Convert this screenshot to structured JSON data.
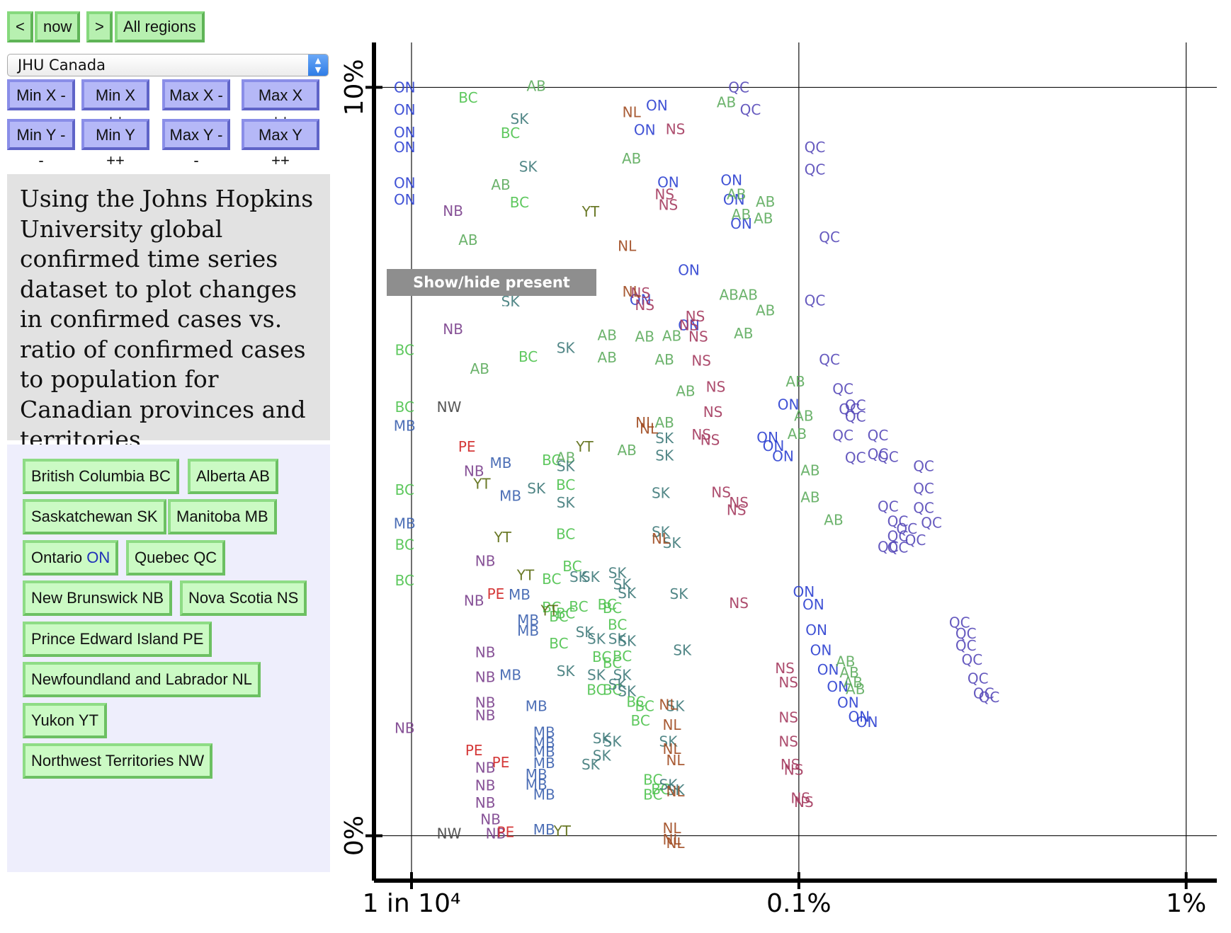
{
  "nav": {
    "prev": "<",
    "now": "now",
    "next": ">",
    "all_regions": "All regions"
  },
  "dataset_select": {
    "value": "JHU Canada",
    "arrow_up": "▲",
    "arrow_down": "▼"
  },
  "axis_buttons": {
    "min_x_down": "Min X --",
    "min_x_up": "Min X ++",
    "max_x_down": "Max X --",
    "max_x_up": "Max X ++",
    "min_y_down": "Min Y --",
    "min_y_up": "Min Y ++",
    "max_y_down": "Max Y --",
    "max_y_up": "Max Y ++"
  },
  "description": "Using the Johns Hopkins University global confirmed time series dataset to plot changes in confirmed cases vs. ratio of confirmed cases to population for Canadian provinces and territories.",
  "regions": [
    {
      "name": "British Columbia",
      "abbr": "BC"
    },
    {
      "name": "Alberta",
      "abbr": "AB"
    },
    {
      "name": "Saskatchewan",
      "abbr": "SK"
    },
    {
      "name": "Manitoba",
      "abbr": "MB"
    },
    {
      "name": "Ontario",
      "abbr": "ON"
    },
    {
      "name": "Quebec",
      "abbr": "QC"
    },
    {
      "name": "New Brunswick",
      "abbr": "NB"
    },
    {
      "name": "Nova Scotia",
      "abbr": "NS"
    },
    {
      "name": "Prince Edward Island",
      "abbr": "PE"
    },
    {
      "name": "Newfoundland and Labrador",
      "abbr": "NL"
    },
    {
      "name": "Yukon",
      "abbr": "YT"
    },
    {
      "name": "Northwest Territories",
      "abbr": "NW"
    }
  ],
  "tooltip": "Show/hide present values",
  "colors": {
    "BC": "#4cc24c",
    "AB": "#5cab5c",
    "SK": "#3f7a7a",
    "MB": "#3a5fae",
    "ON": "#2b3fd0",
    "QC": "#5548b8",
    "NB": "#7a3f8c",
    "NS": "#a43a5e",
    "PE": "#d02424",
    "NL": "#a04a20",
    "YT": "#5a6a10",
    "NW": "#444444"
  },
  "chart_data": {
    "type": "scatter",
    "x_scale": "log",
    "x_ticks": [
      "1 in 10⁴",
      "0.1%",
      "1%"
    ],
    "y_ticks": [
      "10%",
      "0%"
    ],
    "xlim": [
      8e-05,
      0.012
    ],
    "ylim": [
      -0.006,
      0.106
    ],
    "series": [
      {
        "name": "QC",
        "points": [
          [
            0.0007,
            0.1
          ],
          [
            0.00075,
            0.097
          ],
          [
            0.0011,
            0.092
          ],
          [
            0.0011,
            0.089
          ],
          [
            0.0012,
            0.08
          ],
          [
            0.0011,
            0.0715
          ],
          [
            0.0012,
            0.0636
          ],
          [
            0.0013,
            0.0597
          ],
          [
            0.00135,
            0.057
          ],
          [
            0.0014,
            0.0575
          ],
          [
            0.0014,
            0.056
          ],
          [
            0.0013,
            0.0535
          ],
          [
            0.0014,
            0.0505
          ],
          [
            0.0016,
            0.0535
          ],
          [
            0.0016,
            0.051
          ],
          [
            0.0017,
            0.0506
          ],
          [
            0.0021,
            0.0494
          ],
          [
            0.0021,
            0.0464
          ],
          [
            0.0021,
            0.0438
          ],
          [
            0.0022,
            0.0418
          ],
          [
            0.0017,
            0.044
          ],
          [
            0.0018,
            0.042
          ],
          [
            0.0019,
            0.041
          ],
          [
            0.0018,
            0.04
          ],
          [
            0.0017,
            0.0386
          ],
          [
            0.0018,
            0.0385
          ],
          [
            0.002,
            0.0395
          ],
          [
            0.0026,
            0.0285
          ],
          [
            0.0027,
            0.027
          ],
          [
            0.0027,
            0.0254
          ],
          [
            0.0028,
            0.0235
          ],
          [
            0.0029,
            0.021
          ],
          [
            0.003,
            0.019
          ],
          [
            0.0031,
            0.0185
          ]
        ]
      },
      {
        "name": "ON",
        "points": [
          [
            9.6e-05,
            0.1
          ],
          [
            9.6e-05,
            0.097
          ],
          [
            9.6e-05,
            0.094
          ],
          [
            9.6e-05,
            0.092
          ],
          [
            9.6e-05,
            0.0872
          ],
          [
            9.6e-05,
            0.085
          ],
          [
            0.00043,
            0.0976
          ],
          [
            0.0004,
            0.0943
          ],
          [
            0.00046,
            0.0873
          ],
          [
            0.00067,
            0.0876
          ],
          [
            0.00068,
            0.085
          ],
          [
            0.00071,
            0.0818
          ],
          [
            0.00052,
            0.0756
          ],
          [
            0.00039,
            0.0716
          ],
          [
            0.00052,
            0.0682
          ],
          [
            0.00094,
            0.0576
          ],
          [
            0.00083,
            0.0532
          ],
          [
            0.00086,
            0.0521
          ],
          [
            0.00091,
            0.0507
          ],
          [
            0.00103,
            0.0326
          ],
          [
            0.00109,
            0.0309
          ],
          [
            0.00111,
            0.0275
          ],
          [
            0.00114,
            0.0248
          ],
          [
            0.00119,
            0.0222
          ],
          [
            0.00126,
            0.0199
          ],
          [
            0.00134,
            0.0178
          ],
          [
            0.00143,
            0.0159
          ],
          [
            0.0015,
            0.0152
          ]
        ]
      },
      {
        "name": "AB",
        "points": [
          [
            0.00021,
            0.1002
          ],
          [
            0.00065,
            0.098
          ],
          [
            0.00037,
            0.0905
          ],
          [
            0.00017,
            0.087
          ],
          [
            0.00069,
            0.0857
          ],
          [
            0.00082,
            0.0847
          ],
          [
            0.00071,
            0.083
          ],
          [
            0.00081,
            0.0825
          ],
          [
            0.00014,
            0.0796
          ],
          [
            0.00066,
            0.0723
          ],
          [
            0.00074,
            0.0723
          ],
          [
            0.00082,
            0.0702
          ],
          [
            0.00032,
            0.0669
          ],
          [
            0.0004,
            0.0667
          ],
          [
            0.00047,
            0.0668
          ],
          [
            0.00072,
            0.0671
          ],
          [
            0.00015,
            0.0624
          ],
          [
            0.00032,
            0.0639
          ],
          [
            0.00045,
            0.0636
          ],
          [
            0.00098,
            0.0607
          ],
          [
            0.00051,
            0.0594
          ],
          [
            0.00045,
            0.0552
          ],
          [
            0.00036,
            0.0515
          ],
          [
            0.00025,
            0.0505
          ],
          [
            0.00103,
            0.0561
          ],
          [
            0.00099,
            0.0537
          ],
          [
            0.00107,
            0.0488
          ],
          [
            0.00107,
            0.0452
          ],
          [
            0.00123,
            0.0422
          ],
          [
            0.00132,
            0.0233
          ],
          [
            0.00135,
            0.0218
          ],
          [
            0.00138,
            0.0205
          ],
          [
            0.0014,
            0.0196
          ]
        ]
      },
      {
        "name": "NS",
        "points": [
          [
            0.00048,
            0.0944
          ],
          [
            0.00045,
            0.0857
          ],
          [
            0.00046,
            0.0843
          ],
          [
            0.00039,
            0.0725
          ],
          [
            0.0004,
            0.0709
          ],
          [
            0.00054,
            0.0694
          ],
          [
            0.00052,
            0.0682
          ],
          [
            0.00055,
            0.0667
          ],
          [
            0.00056,
            0.0635
          ],
          [
            0.00061,
            0.06
          ],
          [
            0.0006,
            0.0566
          ],
          [
            0.00056,
            0.0536
          ],
          [
            0.00059,
            0.0529
          ],
          [
            0.00063,
            0.0459
          ],
          [
            0.0007,
            0.0445
          ],
          [
            0.00069,
            0.0435
          ],
          [
            0.0007,
            0.0311
          ],
          [
            0.00092,
            0.0224
          ],
          [
            0.00094,
            0.0205
          ],
          [
            0.00094,
            0.0158
          ],
          [
            0.00094,
            0.0126
          ],
          [
            0.00095,
            0.0095
          ],
          [
            0.00097,
            0.0088
          ],
          [
            0.00101,
            0.005
          ],
          [
            0.00103,
            0.0045
          ]
        ]
      },
      {
        "name": "BC",
        "points": [
          [
            0.00014,
            0.0986
          ],
          [
            0.00018,
            0.0939
          ],
          [
            0.00019,
            0.0846
          ],
          [
            9.6e-05,
            0.0649
          ],
          [
            0.0002,
            0.064
          ],
          [
            9.6e-05,
            0.0573
          ],
          [
            9.6e-05,
            0.0462
          ],
          [
            0.00023,
            0.0502
          ],
          [
            9.6e-05,
            0.0389
          ],
          [
            9.6e-05,
            0.0341
          ],
          [
            0.00025,
            0.0469
          ],
          [
            0.00025,
            0.0403
          ],
          [
            0.00026,
            0.036
          ],
          [
            0.00023,
            0.0343
          ],
          [
            0.00023,
            0.0305
          ],
          [
            0.00024,
            0.0293
          ],
          [
            0.00027,
            0.0306
          ],
          [
            0.00025,
            0.0297
          ],
          [
            0.00024,
            0.0257
          ],
          [
            0.00032,
            0.0309
          ],
          [
            0.00033,
            0.0304
          ],
          [
            0.00034,
            0.0282
          ],
          [
            0.00031,
            0.0239
          ],
          [
            0.00035,
            0.024
          ],
          [
            0.00033,
            0.0231
          ],
          [
            0.0003,
            0.0195
          ],
          [
            0.00033,
            0.0195
          ],
          [
            0.00038,
            0.0179
          ],
          [
            0.0004,
            0.0173
          ],
          [
            0.00039,
            0.0154
          ],
          [
            0.00042,
            0.0075
          ],
          [
            0.00044,
            0.0062
          ],
          [
            0.00042,
            0.0055
          ]
        ]
      },
      {
        "name": "SK",
        "points": [
          [
            0.00019,
            0.0958
          ],
          [
            0.0002,
            0.0894
          ],
          [
            0.00018,
            0.0714
          ],
          [
            0.00025,
            0.0652
          ],
          [
            0.00045,
            0.0531
          ],
          [
            0.00045,
            0.0508
          ],
          [
            0.00025,
            0.0494
          ],
          [
            0.00021,
            0.0464
          ],
          [
            0.00044,
            0.0458
          ],
          [
            0.00025,
            0.0445
          ],
          [
            0.00044,
            0.0406
          ],
          [
            0.00047,
            0.0391
          ],
          [
            0.00027,
            0.0346
          ],
          [
            0.00029,
            0.0346
          ],
          [
            0.00034,
            0.0351
          ],
          [
            0.00035,
            0.0336
          ],
          [
            0.00036,
            0.0324
          ],
          [
            0.00049,
            0.0323
          ],
          [
            0.00028,
            0.0272
          ],
          [
            0.0003,
            0.0263
          ],
          [
            0.00034,
            0.0263
          ],
          [
            0.00036,
            0.026
          ],
          [
            0.0005,
            0.0248
          ],
          [
            0.00025,
            0.022
          ],
          [
            0.0003,
            0.0215
          ],
          [
            0.00035,
            0.0215
          ],
          [
            0.00034,
            0.0202
          ],
          [
            0.00036,
            0.0193
          ],
          [
            0.00048,
            0.0173
          ],
          [
            0.00031,
            0.013
          ],
          [
            0.00033,
            0.0126
          ],
          [
            0.00046,
            0.0126
          ],
          [
            0.00031,
            0.0107
          ],
          [
            0.00029,
            0.0095
          ],
          [
            0.00046,
            0.0068
          ],
          [
            0.00048,
            0.0061
          ]
        ]
      },
      {
        "name": "MB",
        "points": [
          [
            9.6e-05,
            0.0548
          ],
          [
            0.00017,
            0.0498
          ],
          [
            9.6e-05,
            0.0417
          ],
          [
            0.00018,
            0.0454
          ],
          [
            0.00019,
            0.0322
          ],
          [
            0.0002,
            0.0288
          ],
          [
            0.0002,
            0.0274
          ],
          [
            0.00018,
            0.0215
          ],
          [
            0.00021,
            0.0173
          ],
          [
            0.00022,
            0.0138
          ],
          [
            0.00022,
            0.0124
          ],
          [
            0.00022,
            0.0112
          ],
          [
            0.00022,
            0.0097
          ],
          [
            0.00021,
            0.0082
          ],
          [
            0.00021,
            0.0068
          ],
          [
            0.00022,
            0.0055
          ],
          [
            0.00022,
            0.0008
          ]
        ]
      },
      {
        "name": "NB",
        "points": [
          [
            0.000128,
            0.0835
          ],
          [
            0.000128,
            0.0677
          ],
          [
            0.000145,
            0.0487
          ],
          [
            0.000155,
            0.0367
          ],
          [
            0.000145,
            0.0314
          ],
          [
            0.000155,
            0.0245
          ],
          [
            0.000155,
            0.0212
          ],
          [
            0.000155,
            0.0178
          ],
          [
            0.000155,
            0.0161
          ],
          [
            9.6e-05,
            0.0144
          ],
          [
            0.000155,
            0.0091
          ],
          [
            0.000155,
            0.0067
          ],
          [
            0.000155,
            0.0044
          ],
          [
            0.00016,
            0.0022
          ],
          [
            0.000165,
            0.0003
          ]
        ]
      },
      {
        "name": "NL",
        "points": [
          [
            0.00037,
            0.0967
          ],
          [
            0.00036,
            0.0788
          ],
          [
            0.00037,
            0.0727
          ],
          [
            0.0004,
            0.0552
          ],
          [
            0.00041,
            0.0544
          ],
          [
            0.00044,
            0.0397
          ],
          [
            0.00046,
            0.0175
          ],
          [
            0.00047,
            0.0148
          ],
          [
            0.00047,
            0.0116
          ],
          [
            0.00048,
            0.0101
          ],
          [
            0.00048,
            0.0059
          ],
          [
            0.00047,
            0.001
          ],
          [
            0.00047,
            -0.0005
          ],
          [
            0.00048,
            -0.001
          ]
        ]
      },
      {
        "name": "YT",
        "points": [
          [
            0.00029,
            0.0834
          ],
          [
            0.00028,
            0.052
          ],
          [
            0.000152,
            0.047
          ],
          [
            0.000172,
            0.0399
          ],
          [
            0.000197,
            0.0348
          ],
          [
            0.000227,
            0.0301
          ],
          [
            0.000245,
            0.0006
          ]
        ]
      },
      {
        "name": "PE",
        "points": [
          [
            0.000139,
            0.052
          ],
          [
            0.000165,
            0.0323
          ],
          [
            0.000145,
            0.0114
          ],
          [
            0.00017,
            0.0098
          ],
          [
            0.000175,
            0.0005
          ]
        ]
      },
      {
        "name": "NW",
        "points": [
          [
            0.000125,
            0.0573
          ],
          [
            0.000125,
            0.0003
          ]
        ]
      }
    ]
  }
}
